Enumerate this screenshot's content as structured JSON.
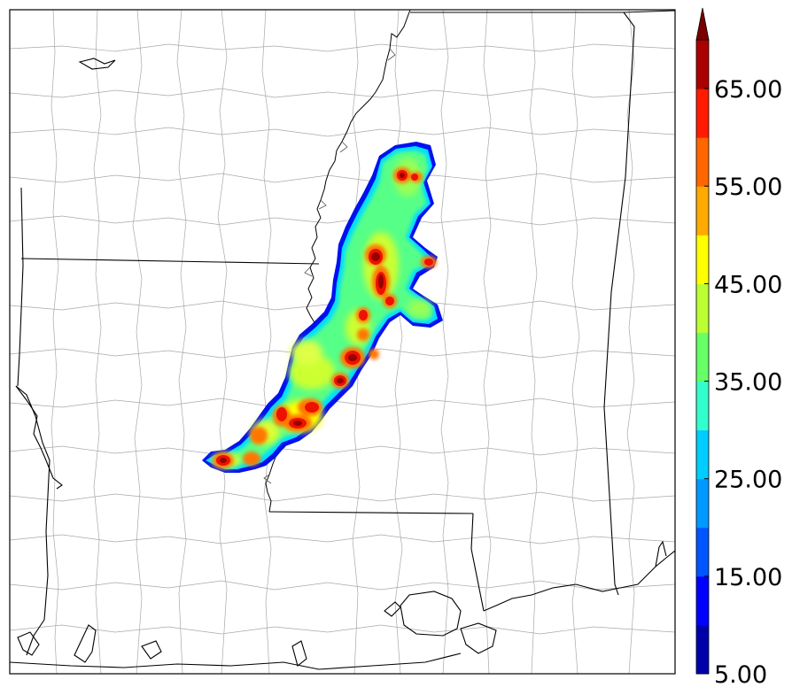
{
  "colorbar": {
    "min": 5,
    "max": 70,
    "step": 5,
    "extend": "max",
    "tick_labels": [
      "5.00",
      "15.00",
      "25.00",
      "35.00",
      "45.00",
      "55.00",
      "65.00"
    ],
    "tick_values": [
      5,
      15,
      25,
      35,
      45,
      55,
      65
    ],
    "colors": [
      "#0000aa",
      "#0000ff",
      "#0055ff",
      "#0099ff",
      "#00ccff",
      "#33ffcc",
      "#66ff66",
      "#bbff33",
      "#ffff00",
      "#ffaa00",
      "#ff6600",
      "#ff1a00",
      "#aa0000"
    ],
    "extend_color": "#7a0000"
  },
  "map": {
    "background": "#ffffff",
    "state_border_color": "#000000",
    "county_border_color": "#9a9a9a"
  }
}
